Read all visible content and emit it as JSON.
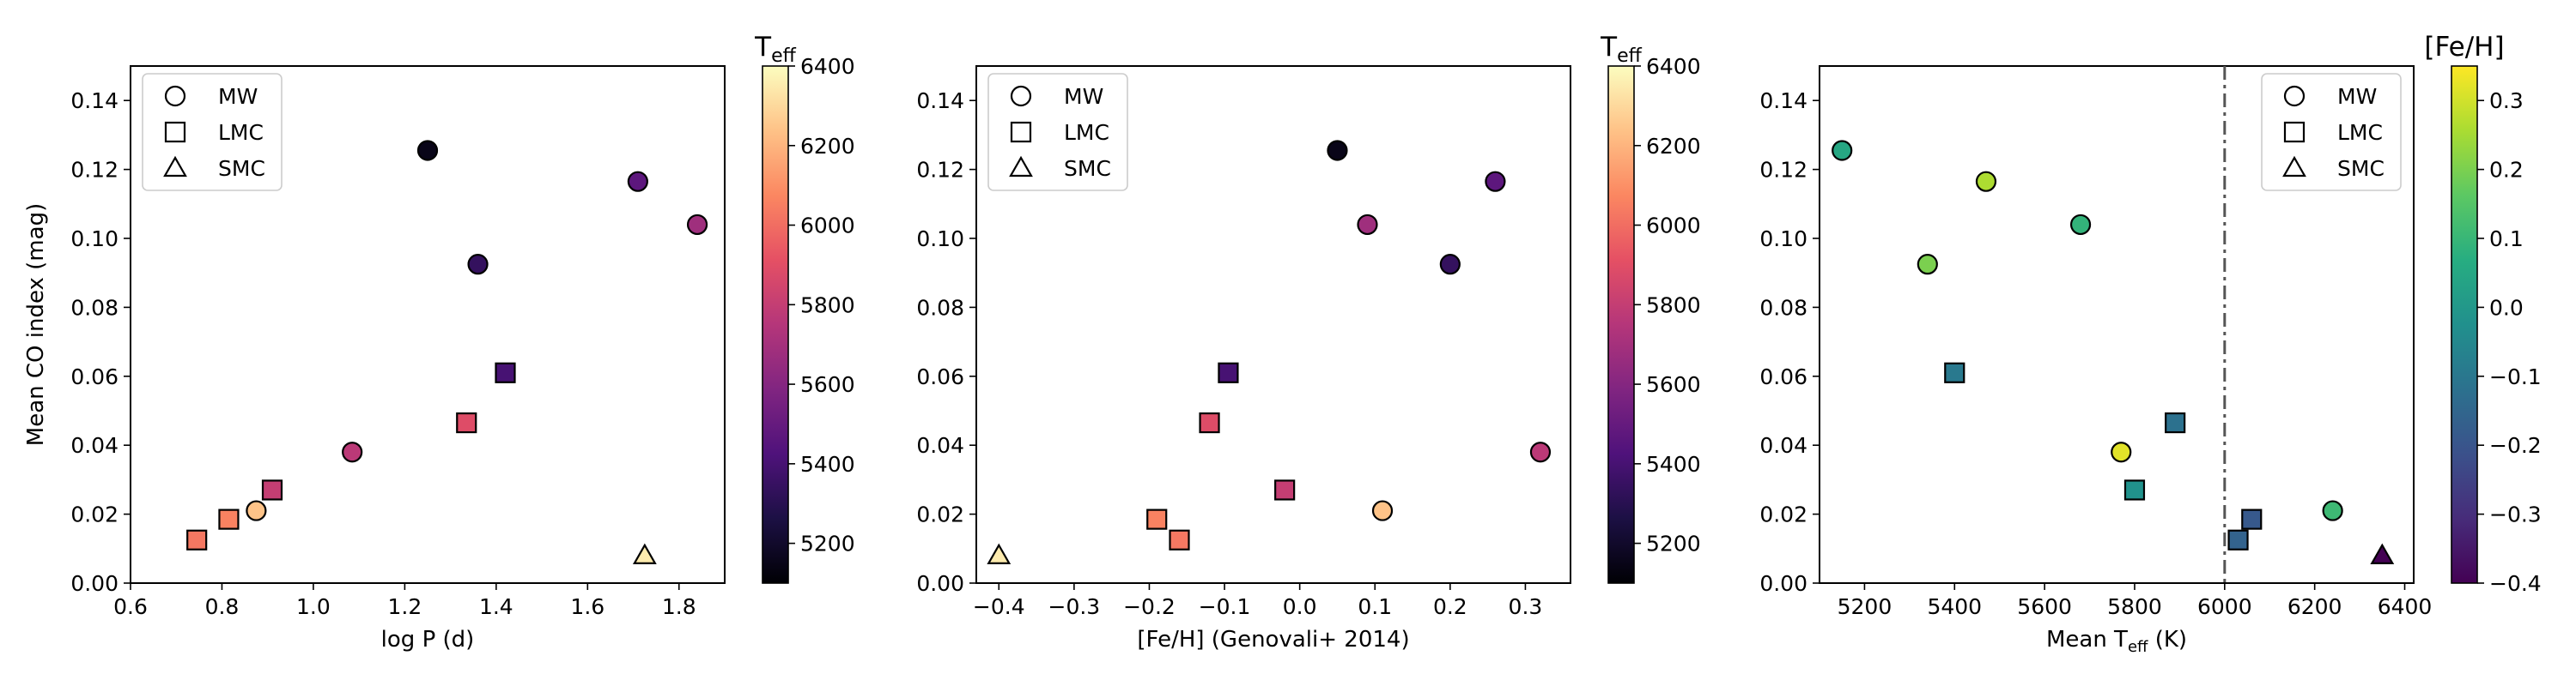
{
  "chart_data": [
    {
      "type": "scatter",
      "xlabel": "log P (d)",
      "ylabel": "Mean CO index (mag)",
      "xlim": [
        0.6,
        1.9
      ],
      "ylim": [
        0.0,
        0.15
      ],
      "xticks": [
        0.6,
        0.8,
        1.0,
        1.2,
        1.4,
        1.6,
        1.8
      ],
      "yticks": [
        0.0,
        0.02,
        0.04,
        0.06,
        0.08,
        0.1,
        0.12,
        0.14
      ],
      "xtick_labels": [
        "0.6",
        "0.8",
        "1.0",
        "1.2",
        "1.4",
        "1.6",
        "1.8"
      ],
      "ytick_labels": [
        "0.00",
        "0.02",
        "0.04",
        "0.06",
        "0.08",
        "0.10",
        "0.12",
        "0.14"
      ],
      "colormap": "magma",
      "colorbar": {
        "label_main": "T",
        "label_sub": "eff",
        "range": [
          5100,
          6400
        ],
        "ticks": [
          5200,
          5400,
          5600,
          5800,
          6000,
          6200,
          6400
        ],
        "tick_labels": [
          "5200",
          "5400",
          "5600",
          "5800",
          "6000",
          "6200",
          "6400"
        ]
      },
      "legend": {
        "location": "upper-left",
        "entries": [
          {
            "marker": "circle",
            "label": "MW"
          },
          {
            "marker": "square",
            "label": "LMC"
          },
          {
            "marker": "triangle",
            "label": "SMC"
          }
        ]
      },
      "points": [
        {
          "galaxy": "MW",
          "x": 1.25,
          "y": 0.1255,
          "c": 5150
        },
        {
          "galaxy": "MW",
          "x": 1.71,
          "y": 0.1165,
          "c": 5470
        },
        {
          "galaxy": "MW",
          "x": 1.84,
          "y": 0.104,
          "c": 5680
        },
        {
          "galaxy": "MW",
          "x": 1.36,
          "y": 0.0925,
          "c": 5340
        },
        {
          "galaxy": "MW",
          "x": 1.085,
          "y": 0.038,
          "c": 5770
        },
        {
          "galaxy": "MW",
          "x": 0.875,
          "y": 0.021,
          "c": 6240
        },
        {
          "galaxy": "LMC",
          "x": 1.42,
          "y": 0.061,
          "c": 5400
        },
        {
          "galaxy": "LMC",
          "x": 1.335,
          "y": 0.0465,
          "c": 5890
        },
        {
          "galaxy": "LMC",
          "x": 0.91,
          "y": 0.027,
          "c": 5800
        },
        {
          "galaxy": "LMC",
          "x": 0.815,
          "y": 0.0185,
          "c": 6060
        },
        {
          "galaxy": "LMC",
          "x": 0.745,
          "y": 0.0125,
          "c": 6030
        },
        {
          "galaxy": "SMC",
          "x": 1.725,
          "y": 0.008,
          "c": 6350
        }
      ]
    },
    {
      "type": "scatter",
      "xlabel": "[Fe/H] (Genovali+ 2014)",
      "ylabel": "",
      "xlim": [
        -0.43,
        0.36
      ],
      "ylim": [
        0.0,
        0.15
      ],
      "xticks": [
        -0.4,
        -0.3,
        -0.2,
        -0.1,
        0.0,
        0.1,
        0.2,
        0.3
      ],
      "yticks": [
        0.0,
        0.02,
        0.04,
        0.06,
        0.08,
        0.1,
        0.12,
        0.14
      ],
      "xtick_labels": [
        "−0.4",
        "−0.3",
        "−0.2",
        "−0.1",
        "0.0",
        "0.1",
        "0.2",
        "0.3"
      ],
      "ytick_labels": [
        "0.00",
        "0.02",
        "0.04",
        "0.06",
        "0.08",
        "0.10",
        "0.12",
        "0.14"
      ],
      "colormap": "magma",
      "colorbar": {
        "label_main": "T",
        "label_sub": "eff",
        "range": [
          5100,
          6400
        ],
        "ticks": [
          5200,
          5400,
          5600,
          5800,
          6000,
          6200,
          6400
        ],
        "tick_labels": [
          "5200",
          "5400",
          "5600",
          "5800",
          "6000",
          "6200",
          "6400"
        ]
      },
      "legend": {
        "location": "upper-left",
        "entries": [
          {
            "marker": "circle",
            "label": "MW"
          },
          {
            "marker": "square",
            "label": "LMC"
          },
          {
            "marker": "triangle",
            "label": "SMC"
          }
        ]
      },
      "points": [
        {
          "galaxy": "MW",
          "x": 0.05,
          "y": 0.1255,
          "c": 5150
        },
        {
          "galaxy": "MW",
          "x": 0.26,
          "y": 0.1165,
          "c": 5470
        },
        {
          "galaxy": "MW",
          "x": 0.09,
          "y": 0.104,
          "c": 5680
        },
        {
          "galaxy": "MW",
          "x": 0.2,
          "y": 0.0925,
          "c": 5340
        },
        {
          "galaxy": "MW",
          "x": 0.32,
          "y": 0.038,
          "c": 5770
        },
        {
          "galaxy": "MW",
          "x": 0.11,
          "y": 0.021,
          "c": 6240
        },
        {
          "galaxy": "LMC",
          "x": -0.095,
          "y": 0.061,
          "c": 5400
        },
        {
          "galaxy": "LMC",
          "x": -0.12,
          "y": 0.0465,
          "c": 5890
        },
        {
          "galaxy": "LMC",
          "x": -0.02,
          "y": 0.027,
          "c": 5800
        },
        {
          "galaxy": "LMC",
          "x": -0.19,
          "y": 0.0185,
          "c": 6060
        },
        {
          "galaxy": "LMC",
          "x": -0.16,
          "y": 0.0125,
          "c": 6030
        },
        {
          "galaxy": "SMC",
          "x": -0.4,
          "y": 0.008,
          "c": 6350
        }
      ]
    },
    {
      "type": "scatter",
      "xlabel_main": "Mean T",
      "xlabel_sub": "eff",
      "xlabel_tail": " (K)",
      "ylabel": "",
      "xlim": [
        5100,
        6420
      ],
      "ylim": [
        0.0,
        0.15
      ],
      "xticks": [
        5200,
        5400,
        5600,
        5800,
        6000,
        6200,
        6400
      ],
      "yticks": [
        0.0,
        0.02,
        0.04,
        0.06,
        0.08,
        0.1,
        0.12,
        0.14
      ],
      "xtick_labels": [
        "5200",
        "5400",
        "5600",
        "5800",
        "6000",
        "6200",
        "6400"
      ],
      "ytick_labels": [
        "0.00",
        "0.02",
        "0.04",
        "0.06",
        "0.08",
        "0.10",
        "0.12",
        "0.14"
      ],
      "colormap": "viridis",
      "vline_x": 6000,
      "colorbar": {
        "label_main": "[Fe/H]",
        "label_sub": "",
        "range": [
          -0.4,
          0.35
        ],
        "ticks": [
          -0.4,
          -0.3,
          -0.2,
          -0.1,
          0.0,
          0.1,
          0.2,
          0.3
        ],
        "tick_labels": [
          "−0.4",
          "−0.3",
          "−0.2",
          "−0.1",
          "0.0",
          "0.1",
          "0.2",
          "0.3"
        ]
      },
      "legend": {
        "location": "upper-right",
        "entries": [
          {
            "marker": "circle",
            "label": "MW"
          },
          {
            "marker": "square",
            "label": "LMC"
          },
          {
            "marker": "triangle",
            "label": "SMC"
          }
        ]
      },
      "points": [
        {
          "galaxy": "MW",
          "x": 5150,
          "y": 0.1255,
          "c": 0.05
        },
        {
          "galaxy": "MW",
          "x": 5470,
          "y": 0.1165,
          "c": 0.26
        },
        {
          "galaxy": "MW",
          "x": 5680,
          "y": 0.104,
          "c": 0.09
        },
        {
          "galaxy": "MW",
          "x": 5340,
          "y": 0.0925,
          "c": 0.2
        },
        {
          "galaxy": "MW",
          "x": 5770,
          "y": 0.038,
          "c": 0.32
        },
        {
          "galaxy": "MW",
          "x": 6240,
          "y": 0.021,
          "c": 0.11
        },
        {
          "galaxy": "LMC",
          "x": 5400,
          "y": 0.061,
          "c": -0.095
        },
        {
          "galaxy": "LMC",
          "x": 5890,
          "y": 0.0465,
          "c": -0.12
        },
        {
          "galaxy": "LMC",
          "x": 5800,
          "y": 0.027,
          "c": -0.02
        },
        {
          "galaxy": "LMC",
          "x": 6060,
          "y": 0.0185,
          "c": -0.19
        },
        {
          "galaxy": "LMC",
          "x": 6030,
          "y": 0.0125,
          "c": -0.16
        },
        {
          "galaxy": "SMC",
          "x": 6350,
          "y": 0.008,
          "c": -0.4
        }
      ]
    }
  ]
}
